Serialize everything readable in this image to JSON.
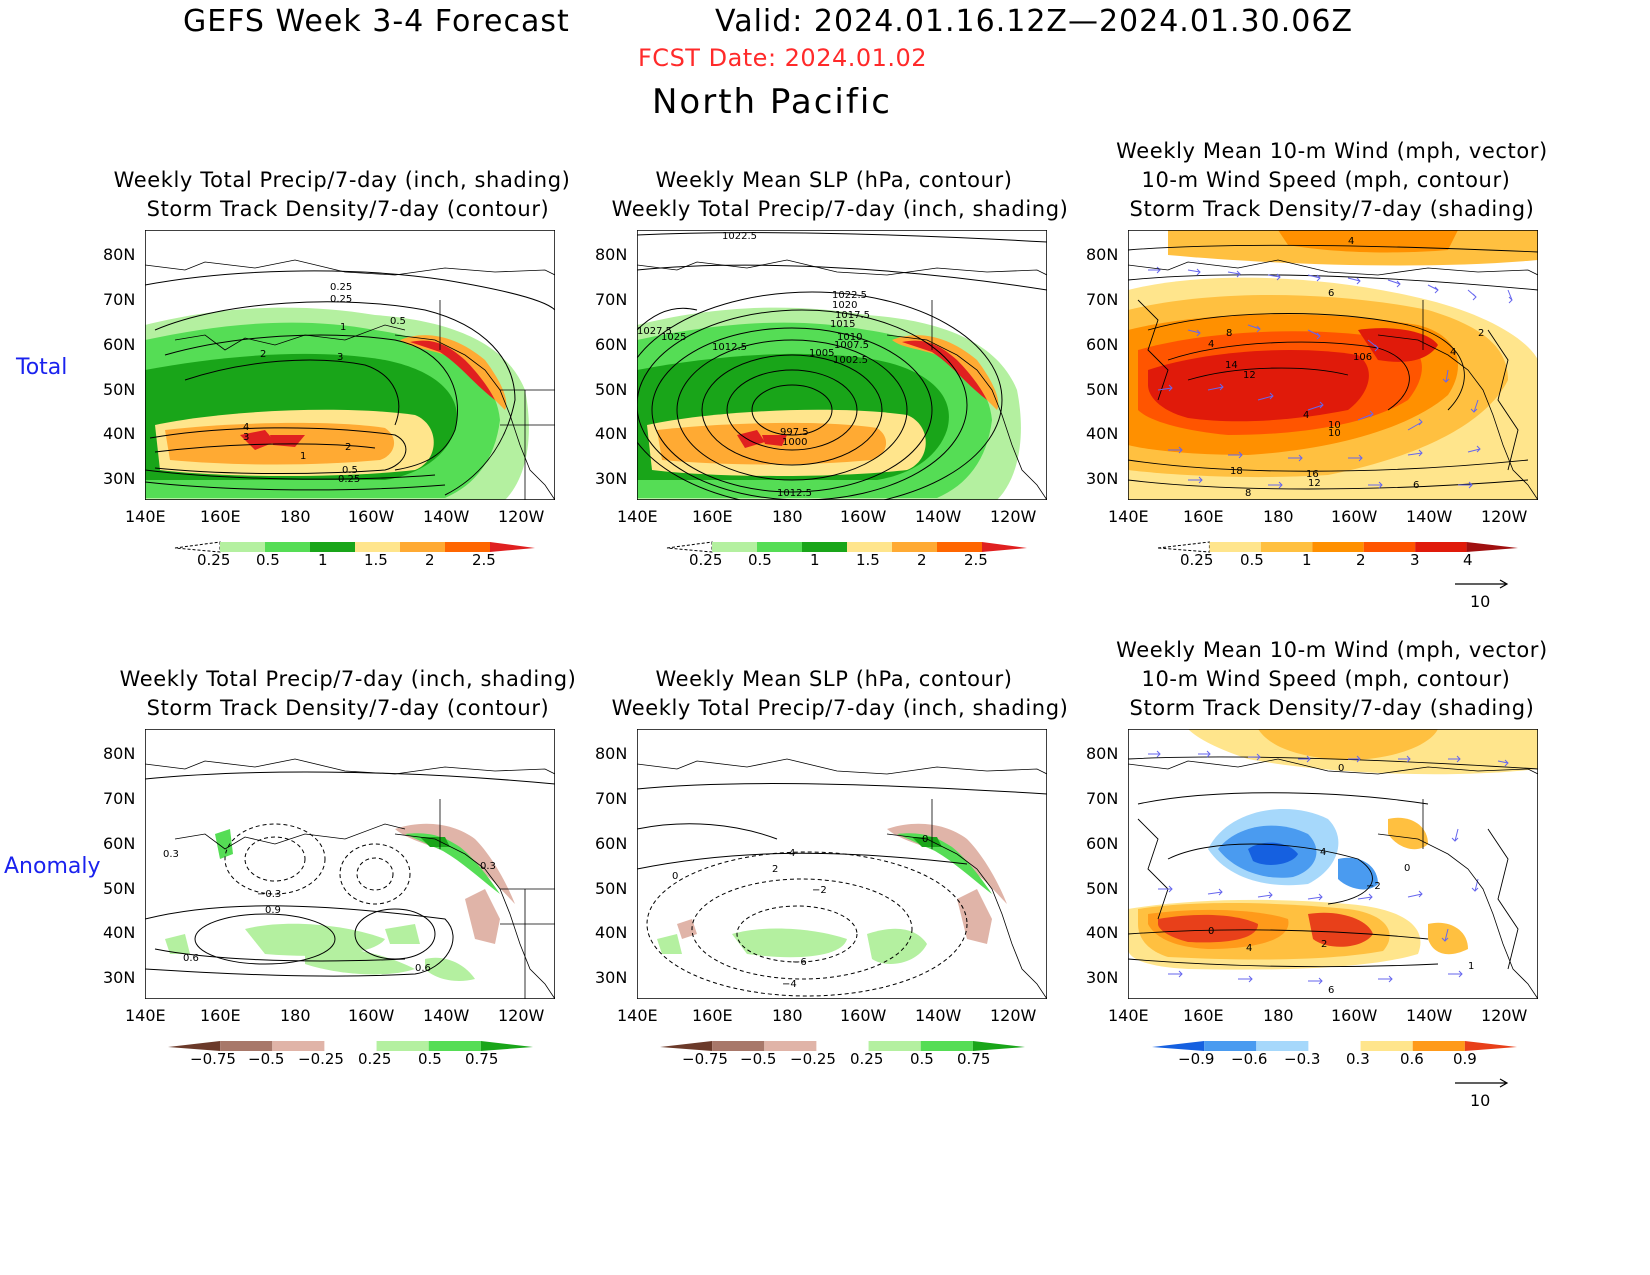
{
  "header": {
    "title": "GEFS Week 3-4 Forecast",
    "valid": "Valid: 2024.01.16.12Z—2024.01.30.06Z",
    "fcst_date": "FCST Date: 2024.01.02",
    "region": "North Pacific"
  },
  "rows": [
    {
      "label": "Total"
    },
    {
      "label": "Anomaly"
    }
  ],
  "panel_titles": {
    "precip_storm": [
      "Weekly Total Precip/7-day (inch, shading)",
      "Storm Track Density/7-day (contour)"
    ],
    "slp_precip": [
      "Weekly Mean SLP (hPa, contour)",
      "Weekly Total Precip/7-day (inch, shading)"
    ],
    "wind_storm": [
      "Weekly Mean 10-m Wind (mph, vector)",
      "10-m Wind Speed (mph, contour)",
      "Storm Track Density/7-day (shading)"
    ]
  },
  "axes": {
    "lat_labels": [
      "80N",
      "70N",
      "60N",
      "50N",
      "40N",
      "30N"
    ],
    "lon_labels": [
      "140E",
      "160E",
      "180",
      "160W",
      "140W",
      "120W"
    ]
  },
  "colorbars": {
    "total_precip": {
      "labels": [
        "0.25",
        "0.5",
        "1",
        "1.5",
        "2",
        "2.5"
      ],
      "colors": [
        "#ffffff",
        "#b4f0a0",
        "#55dd55",
        "#19a519",
        "#ffe58c",
        "#ffaa33",
        "#ff6600",
        "#e02020"
      ]
    },
    "total_storm": {
      "labels": [
        "0.25",
        "0.5",
        "1",
        "2",
        "3",
        "4"
      ],
      "colors": [
        "#ffffff",
        "#ffe58c",
        "#ffc040",
        "#ff9000",
        "#ff5500",
        "#e01a0a",
        "#a01010"
      ]
    },
    "anom_precip": {
      "labels": [
        "−0.75",
        "−0.5",
        "−0.25",
        "0.25",
        "0.5",
        "0.75"
      ],
      "colors": [
        "#6b3a2a",
        "#a8786a",
        "#e0b4a8",
        "#ffffff",
        "#b4f0a0",
        "#55dd55",
        "#19a519"
      ]
    },
    "anom_storm": {
      "labels": [
        "−0.9",
        "−0.6",
        "−0.3",
        "0.3",
        "0.6",
        "0.9"
      ],
      "colors": [
        "#1560e0",
        "#4a9bf0",
        "#a6d8fb",
        "#ffffff",
        "#ffe58c",
        "#ff9a1a",
        "#e8401a"
      ]
    }
  },
  "vector_reference": {
    "value": "10"
  },
  "contour_labels": {
    "total_precip_storm": [
      "0.25",
      "0.25",
      "0.5",
      "1",
      "2",
      "3",
      "4",
      "3",
      "2",
      "1",
      "0.5",
      "0.25"
    ],
    "total_slp": [
      "1022.5",
      "1022.5",
      "1020",
      "1017.5",
      "1015",
      "1012.5",
      "1010",
      "1007.5",
      "1005",
      "1002.5",
      "1025",
      "1027.5",
      "997.5",
      "1000",
      "1012.5"
    ],
    "total_wind": [
      "4",
      "6",
      "8",
      "14",
      "12",
      "106",
      "4",
      "4",
      "10",
      "10",
      "18",
      "16",
      "12",
      "8",
      "6",
      "2",
      "4"
    ],
    "anom_precip_storm": [
      "0.3",
      "−0.3",
      "0.9",
      "0.6",
      "0.6",
      "0.3"
    ],
    "anom_slp": [
      "0",
      "2",
      "4",
      "−2",
      "−6",
      "−4",
      "0"
    ],
    "anom_wind": [
      "0",
      "4",
      "0",
      "4",
      "2",
      "−2",
      "0",
      "6",
      "1"
    ]
  }
}
